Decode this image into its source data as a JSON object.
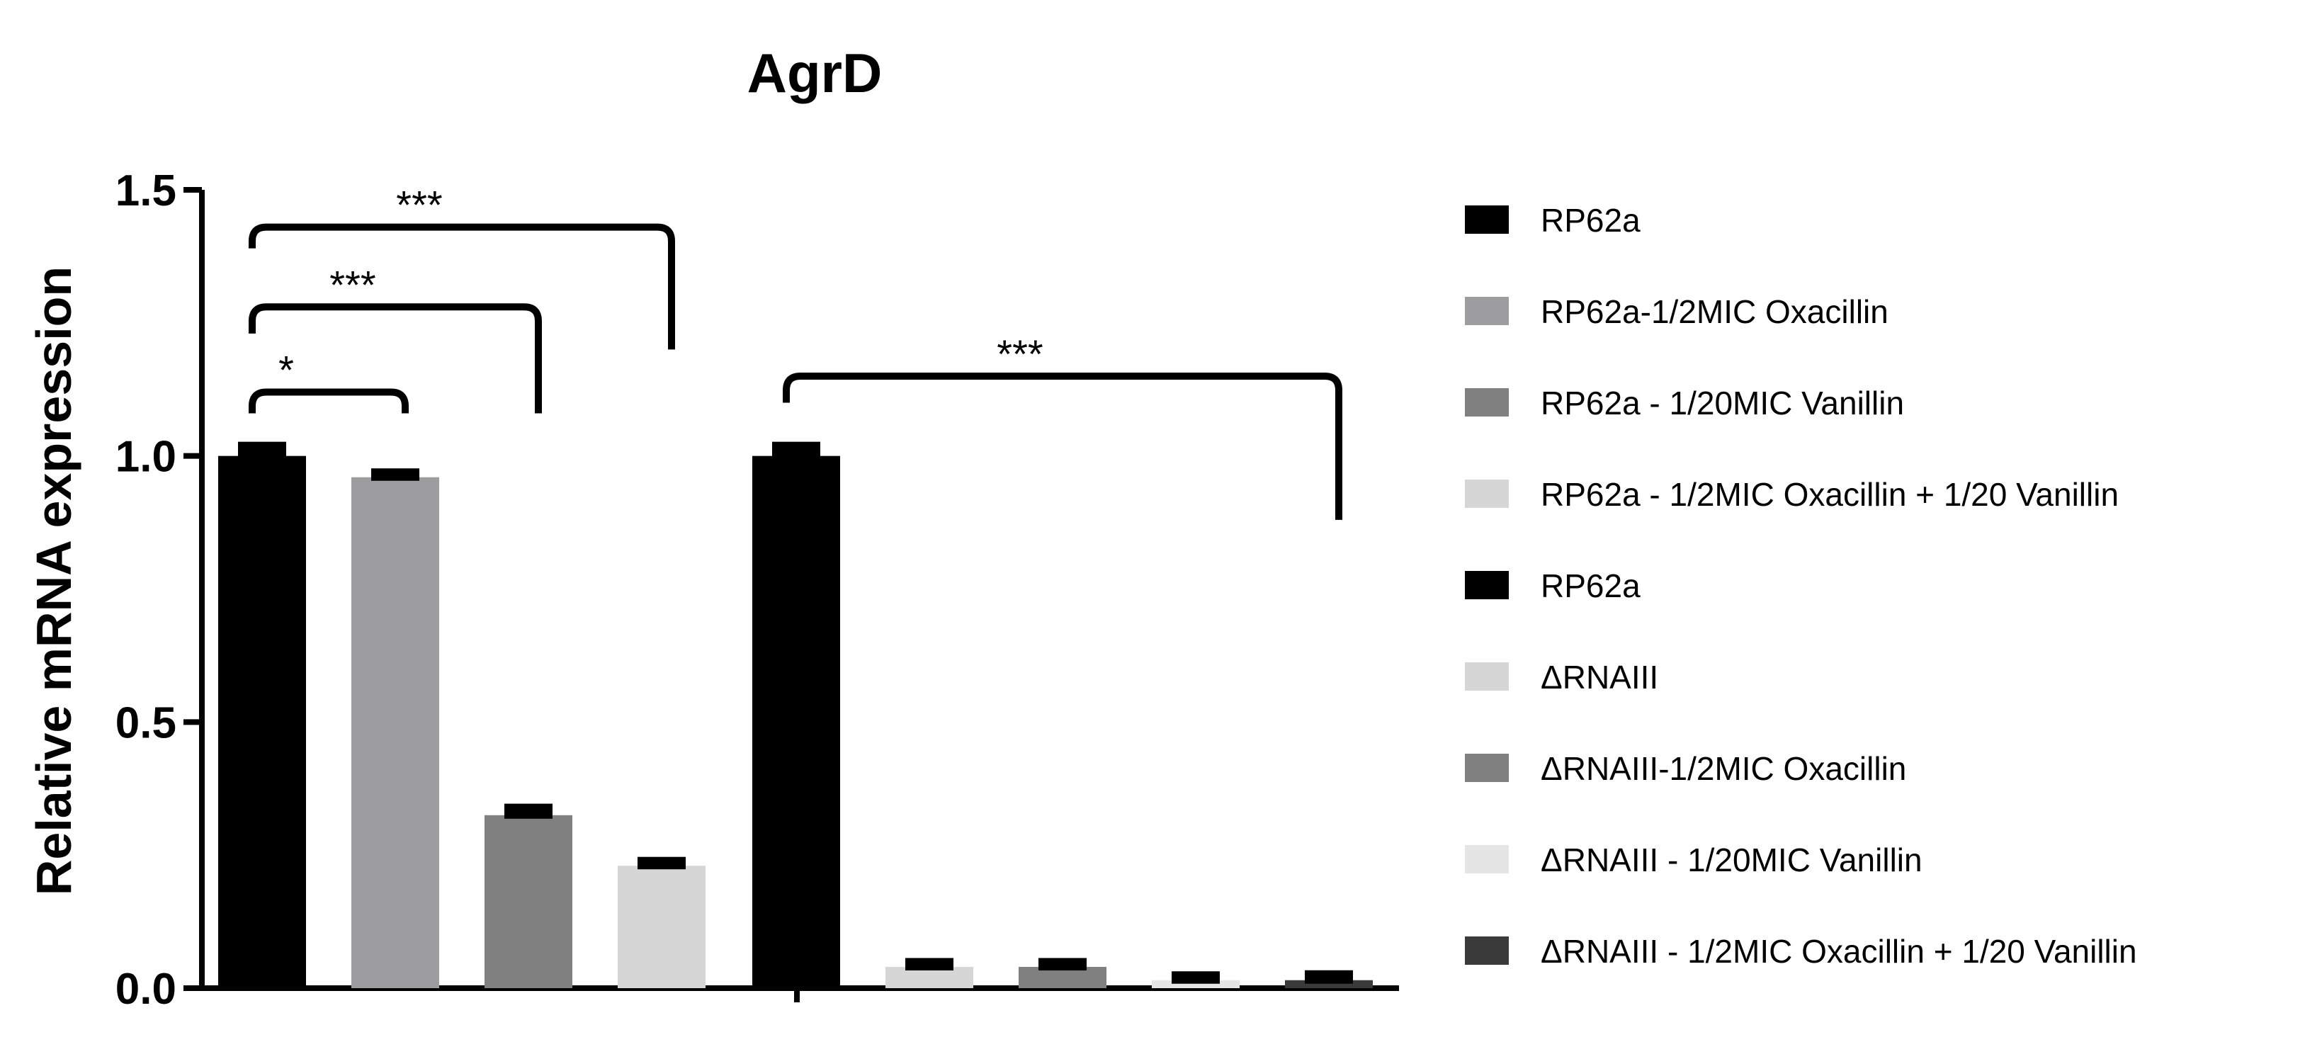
{
  "chart_data": {
    "type": "bar",
    "title": "AgrD",
    "xlabel": "",
    "ylabel": "Relative mRNA expression",
    "ylim": [
      0,
      1.5
    ],
    "yticks": [
      "0.0",
      "0.5",
      "1.0",
      "1.5"
    ],
    "grid": false,
    "legend_position": "right",
    "series": [
      {
        "name": "RP62a",
        "value": 1.0,
        "error": 0.02,
        "color": "#000000"
      },
      {
        "name": "RP62a-1/2MIC Oxacillin",
        "value": 0.96,
        "error": 0.01,
        "color": "#9d9d9f"
      },
      {
        "name": "RP62a - 1/20MIC Vanillin",
        "value": 0.325,
        "error": 0.015,
        "color": "#808080"
      },
      {
        "name": "RP62a - 1/2MIC Oxacillin + 1/20 Vanillin",
        "value": 0.23,
        "error": 0.01,
        "color": "#d6d6d6"
      },
      {
        "name": "RP62a",
        "value": 1.0,
        "error": 0.02,
        "color": "#000000"
      },
      {
        "name": "ΔRNAIII",
        "value": 0.04,
        "error": 0.01,
        "color": "#d6d6d6"
      },
      {
        "name": "ΔRNAIII-1/2MIC Oxacillin",
        "value": 0.04,
        "error": 0.01,
        "color": "#808080"
      },
      {
        "name": "ΔRNAIII - 1/20MIC Vanillin",
        "value": 0.015,
        "error": 0.01,
        "color": "#e5e5e5"
      },
      {
        "name": "ΔRNAIII - 1/2MIC Oxacillin + 1/20 Vanillin",
        "value": 0.015,
        "error": 0.012,
        "color": "#3a3a3a"
      }
    ],
    "annotations": [
      {
        "from": 0,
        "to": 1,
        "label": "*",
        "left_value": 1.08,
        "right_value": 1.08,
        "top_value": 1.12,
        "down_to_value": 1.08
      },
      {
        "from": 0,
        "to": 2,
        "label": "***",
        "left_value": 1.23,
        "right_value": 1.08,
        "top_value": 1.28,
        "down_to_value": 1.08
      },
      {
        "from": 0,
        "to": 3,
        "label": "***",
        "left_value": 1.39,
        "right_value": 1.2,
        "top_value": 1.43,
        "down_to_value": 1.2
      },
      {
        "from": 4,
        "to": 8,
        "label": "***",
        "left_value": 1.1,
        "right_value": 0.88,
        "top_value": 1.15,
        "down_to_value": 0.88
      }
    ]
  }
}
